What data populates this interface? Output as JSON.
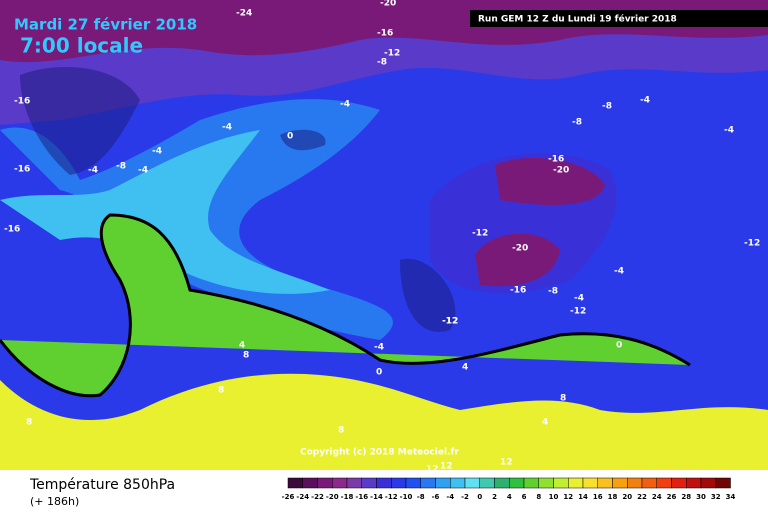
{
  "header": {
    "date": "Mardi 27 février 2018",
    "time": "7:00 locale",
    "run": "Run GEM 12 Z du Lundi 19 février 2018"
  },
  "footer": {
    "variable": "Température 850hPa",
    "lead": "(+ 186h)",
    "copyright": "Copyright (c) 2018 Meteociel.fr"
  },
  "contour_labels": [
    "-24",
    "-20",
    "-16",
    "-12",
    "-8",
    "-16",
    "-16",
    "-16",
    "-4",
    "-4",
    "-4",
    "-8",
    "-4",
    "-4",
    "0",
    "-8",
    "-4",
    "-8",
    "-4",
    "-16",
    "-20",
    "-12",
    "-12",
    "-20",
    "-16",
    "-8",
    "-4",
    "-12",
    "-4",
    "-12",
    "-12",
    "-4",
    "0",
    "4",
    "8",
    "4",
    "8",
    "8",
    "8",
    "8",
    "0",
    "4",
    "12",
    "12",
    "12"
  ],
  "legend": {
    "ticks": [
      -26,
      -24,
      -22,
      -20,
      -18,
      -16,
      -14,
      -12,
      -10,
      -8,
      -6,
      -4,
      -2,
      0,
      2,
      4,
      6,
      8,
      10,
      12,
      14,
      16,
      18,
      20,
      22,
      24,
      26,
      28,
      30,
      32,
      34
    ],
    "colors": [
      "#3a0a3a",
      "#5a0f5a",
      "#7a1a78",
      "#8c2a8c",
      "#7a3aa8",
      "#5a3ac8",
      "#3a30d8",
      "#2a3ae8",
      "#2050f0",
      "#2878f0",
      "#30a0f0",
      "#40c0f0",
      "#60e0f0",
      "#40c8b0",
      "#30b070",
      "#30c040",
      "#60d030",
      "#90e030",
      "#c0ee30",
      "#e8f030",
      "#f8e030",
      "#f8c020",
      "#f8a010",
      "#f08010",
      "#f06010",
      "#f04010",
      "#e02010",
      "#c01010",
      "#a00a0a",
      "#700505"
    ]
  }
}
